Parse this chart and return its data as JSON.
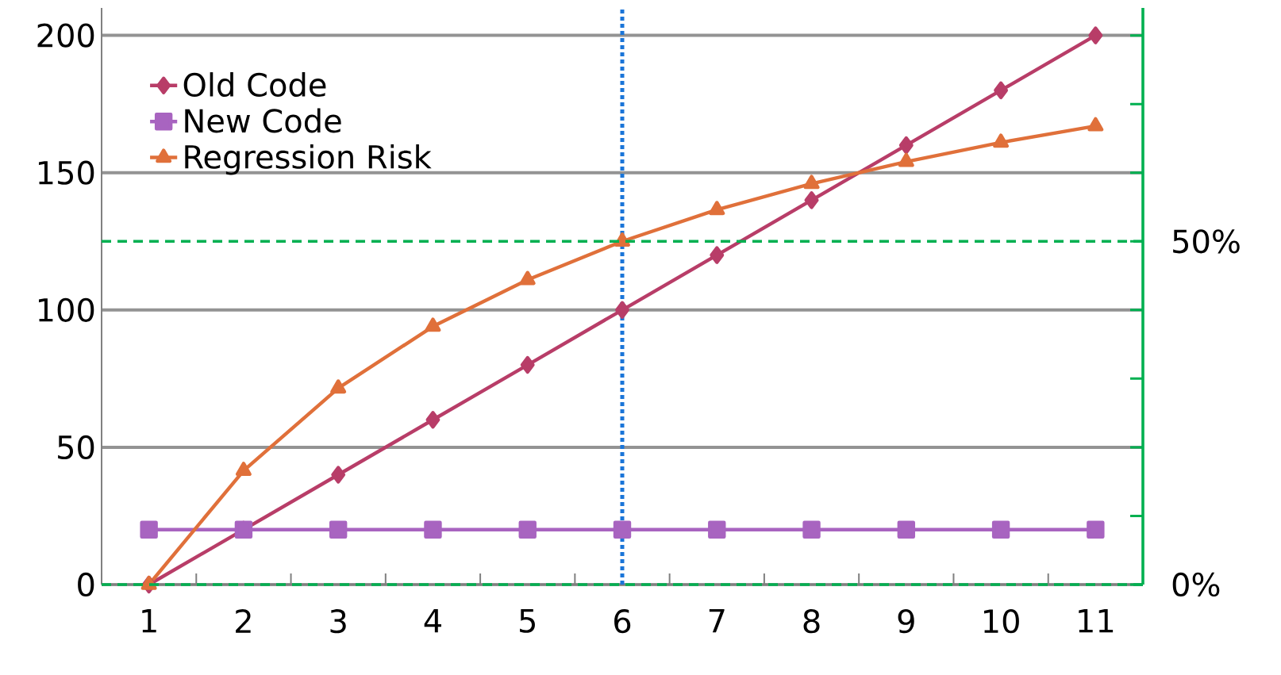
{
  "chart_data": {
    "type": "line",
    "categories": [
      "1",
      "2",
      "3",
      "4",
      "5",
      "6",
      "7",
      "8",
      "9",
      "10",
      "11"
    ],
    "series": [
      {
        "name": "Old Code",
        "color": "#b83d68",
        "marker": "diamond",
        "values": [
          0,
          20,
          40,
          60,
          80,
          100,
          120,
          140,
          160,
          180,
          200
        ]
      },
      {
        "name": "New Code",
        "color": "#a864c0",
        "marker": "square",
        "values": [
          20,
          20,
          20,
          20,
          20,
          20,
          20,
          20,
          20,
          20,
          20
        ]
      },
      {
        "name": "Regression Risk",
        "color": "#e0703a",
        "marker": "triangle",
        "values": [
          0,
          41.5,
          71.5,
          94,
          111,
          125,
          136.5,
          146,
          154,
          161,
          167
        ]
      }
    ],
    "ylim": [
      0,
      210
    ],
    "yticks": [
      0,
      50,
      100,
      150,
      200
    ],
    "y2lim": [
      0,
      84
    ],
    "y2ticks": [
      {
        "value": 0,
        "label": "0%"
      },
      {
        "value": 10,
        "label": null
      },
      {
        "value": 20,
        "label": null
      },
      {
        "value": 30,
        "label": null
      },
      {
        "value": 40,
        "label": null
      },
      {
        "value": 50,
        "label": "50%"
      },
      {
        "value": 60,
        "label": null
      },
      {
        "value": 70,
        "label": null
      },
      {
        "value": 80,
        "label": null
      }
    ],
    "ref_lines": [
      {
        "axis": "y2",
        "value": 50,
        "color": "#00b050",
        "line_style": "dashed"
      },
      {
        "axis": "y2",
        "value": 0,
        "color": "#00b050",
        "line_style": "dashed"
      },
      {
        "axis": "x",
        "value": "6",
        "color": "#1a75d8",
        "line_style": "dotted"
      }
    ],
    "grid": "y",
    "legend": "top left"
  }
}
